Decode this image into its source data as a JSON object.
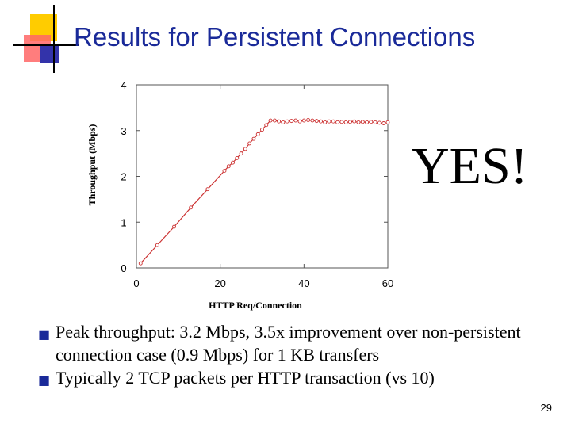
{
  "slide": {
    "title": "Results for Persistent Connections",
    "callout": "YES!",
    "bullets": [
      "Peak throughput: 3.2 Mbps, 3.5x improvement over non-persistent connection case (0.9 Mbps) for 1 KB transfers",
      "Typically 2 TCP packets per HTTP transaction (vs 10)"
    ],
    "page_number": "29",
    "colors": {
      "title": "#1a2a99",
      "series": "#cc3333"
    }
  },
  "chart_data": {
    "type": "line",
    "xlabel": "HTTP Req/Connection",
    "ylabel": "Throughput (Mbps)",
    "xlim": [
      0,
      60
    ],
    "ylim": [
      0,
      4
    ],
    "xticks": [
      "0",
      "20",
      "40",
      "60"
    ],
    "yticks": [
      "0",
      "1",
      "2",
      "3",
      "4"
    ],
    "grid": false,
    "series": [
      {
        "x": [
          1,
          5,
          9,
          13,
          17,
          21,
          22,
          23,
          24,
          25,
          26,
          27,
          28,
          29,
          30,
          31,
          32,
          33,
          34,
          35,
          36,
          37,
          38,
          39,
          40,
          41,
          42,
          43,
          44,
          45,
          46,
          47,
          48,
          49,
          50,
          51,
          52,
          53,
          54,
          55,
          56,
          57,
          58,
          59,
          60
        ],
        "y": [
          0.1,
          0.5,
          0.9,
          1.32,
          1.72,
          2.12,
          2.22,
          2.3,
          2.4,
          2.5,
          2.6,
          2.72,
          2.82,
          2.92,
          3.02,
          3.12,
          3.22,
          3.22,
          3.2,
          3.18,
          3.2,
          3.21,
          3.22,
          3.2,
          3.22,
          3.23,
          3.22,
          3.21,
          3.2,
          3.18,
          3.2,
          3.2,
          3.18,
          3.19,
          3.18,
          3.19,
          3.2,
          3.18,
          3.19,
          3.18,
          3.19,
          3.18,
          3.17,
          3.16,
          3.18
        ]
      }
    ]
  }
}
